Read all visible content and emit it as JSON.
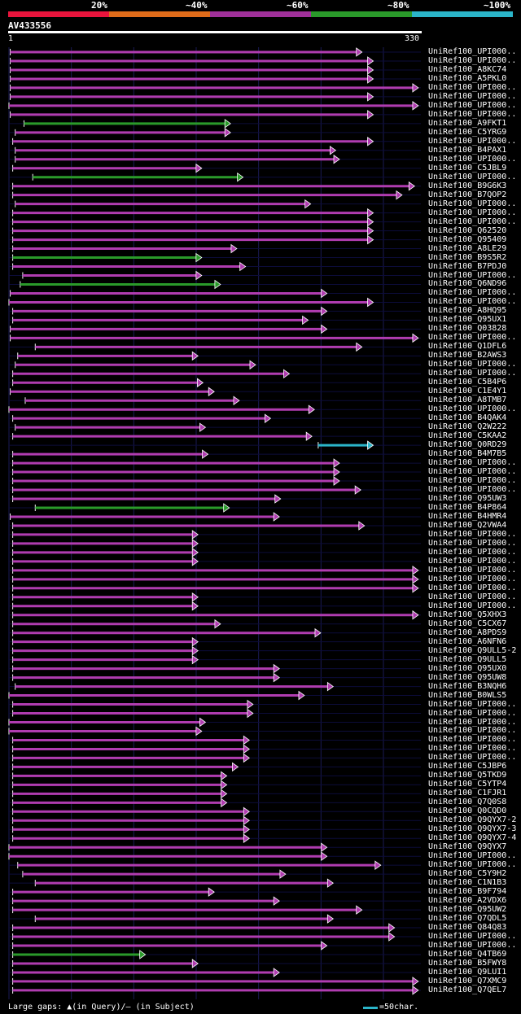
{
  "legend": [
    {
      "label": "20%",
      "color": "#e8143c"
    },
    {
      "label": "~40%",
      "color": "#e06c1a"
    },
    {
      "label": "~60%",
      "color": "#a0309a"
    },
    {
      "label": "~80%",
      "color": "#2a9a2a"
    },
    {
      "label": "~100%",
      "color": "#2bb5c9"
    }
  ],
  "query": {
    "name": "AV433556",
    "start": "1",
    "end": "330",
    "length": 330
  },
  "footer": {
    "gaps_text": "Large gaps: ▲(in Query)/— (in Subject)",
    "scale_text": "=50char."
  },
  "chart_data": {
    "type": "alignment",
    "axis_max": 330,
    "hits": [
      {
        "name": "UniRef100_UPI000..",
        "start": 2,
        "end": 283,
        "c": "m"
      },
      {
        "name": "UniRef100_UPI000..",
        "start": 2,
        "end": 292,
        "c": "m"
      },
      {
        "name": "UniRef100_A8KC74",
        "start": 2,
        "end": 292,
        "c": "m"
      },
      {
        "name": "UniRef100_A5PKL0",
        "start": 2,
        "end": 292,
        "c": "m"
      },
      {
        "name": "UniRef100_UPI000..",
        "start": 2,
        "end": 328,
        "c": "m"
      },
      {
        "name": "UniRef100_UPI000..",
        "start": 2,
        "end": 292,
        "c": "m"
      },
      {
        "name": "UniRef100_UPI000..",
        "start": 1,
        "end": 328,
        "c": "m"
      },
      {
        "name": "UniRef100_UPI000..",
        "start": 2,
        "end": 292,
        "c": "m"
      },
      {
        "name": "UniRef100_A9FKT1",
        "start": 13,
        "end": 178,
        "c": "g"
      },
      {
        "name": "UniRef100_C5YRG9",
        "start": 6,
        "end": 178,
        "c": "m"
      },
      {
        "name": "UniRef100_UPI000..",
        "start": 4,
        "end": 292,
        "c": "m"
      },
      {
        "name": "UniRef100_B4PAX1",
        "start": 6,
        "end": 262,
        "c": "m"
      },
      {
        "name": "UniRef100_UPI000..",
        "start": 6,
        "end": 265,
        "c": "m"
      },
      {
        "name": "UniRef100_C5JBL9",
        "start": 4,
        "end": 155,
        "c": "m"
      },
      {
        "name": "UniRef100_UPI000..",
        "start": 20,
        "end": 188,
        "c": "g"
      },
      {
        "name": "UniRef100_B9G6K3",
        "start": 4,
        "end": 325,
        "c": "m"
      },
      {
        "name": "UniRef100_B7QOP2",
        "start": 4,
        "end": 315,
        "c": "m"
      },
      {
        "name": "UniRef100_UPI000..",
        "start": 6,
        "end": 242,
        "c": "m"
      },
      {
        "name": "UniRef100_UPI000..",
        "start": 4,
        "end": 292,
        "c": "m"
      },
      {
        "name": "UniRef100_UPI000..",
        "start": 4,
        "end": 292,
        "c": "m"
      },
      {
        "name": "UniRef100_Q62520",
        "start": 4,
        "end": 292,
        "c": "m"
      },
      {
        "name": "UniRef100_Q95409",
        "start": 4,
        "end": 292,
        "c": "m"
      },
      {
        "name": "UniRef100_A8LE29",
        "start": 4,
        "end": 183,
        "c": "m"
      },
      {
        "name": "UniRef100_B9S5R2",
        "start": 4,
        "end": 155,
        "c": "g"
      },
      {
        "name": "UniRef100_B7PDJ0",
        "start": 4,
        "end": 190,
        "c": "m"
      },
      {
        "name": "UniRef100_UPI000..",
        "start": 12,
        "end": 155,
        "c": "m"
      },
      {
        "name": "UniRef100_Q6ND96",
        "start": 10,
        "end": 170,
        "c": "g"
      },
      {
        "name": "UniRef100_UPI000..",
        "start": 2,
        "end": 255,
        "c": "m"
      },
      {
        "name": "UniRef100_UPI000..",
        "start": 1,
        "end": 292,
        "c": "m"
      },
      {
        "name": "UniRef100_A8HQ95",
        "start": 4,
        "end": 255,
        "c": "m"
      },
      {
        "name": "UniRef100_Q95UX1",
        "start": 4,
        "end": 240,
        "c": "m"
      },
      {
        "name": "UniRef100_Q03828",
        "start": 2,
        "end": 255,
        "c": "m"
      },
      {
        "name": "UniRef100_UPI000..",
        "start": 2,
        "end": 328,
        "c": "m"
      },
      {
        "name": "UniRef100_Q1DFL6",
        "start": 22,
        "end": 283,
        "c": "m"
      },
      {
        "name": "UniRef100_B2AWS3",
        "start": 8,
        "end": 152,
        "c": "m"
      },
      {
        "name": "UniRef100_UPI000..",
        "start": 6,
        "end": 198,
        "c": "m"
      },
      {
        "name": "UniRef100_UPI000..",
        "start": 4,
        "end": 225,
        "c": "m"
      },
      {
        "name": "UniRef100_C5B4P6",
        "start": 4,
        "end": 156,
        "c": "m"
      },
      {
        "name": "UniRef100_C1E4Y1",
        "start": 2,
        "end": 165,
        "c": "m"
      },
      {
        "name": "UniRef100_A8TMB7",
        "start": 14,
        "end": 185,
        "c": "m"
      },
      {
        "name": "UniRef100_UPI000..",
        "start": 1,
        "end": 245,
        "c": "m"
      },
      {
        "name": "UniRef100_B4QAK4",
        "start": 4,
        "end": 210,
        "c": "m"
      },
      {
        "name": "UniRef100_Q2W222",
        "start": 6,
        "end": 158,
        "c": "m"
      },
      {
        "name": "UniRef100_C5KAA2",
        "start": 4,
        "end": 243,
        "c": "m"
      },
      {
        "name": "UniRef100_Q0RD29",
        "start": 248,
        "end": 292,
        "c": "c"
      },
      {
        "name": "UniRef100_B4M7B5",
        "start": 4,
        "end": 160,
        "c": "m"
      },
      {
        "name": "UniRef100_UPI000..",
        "start": 4,
        "end": 265,
        "c": "m"
      },
      {
        "name": "UniRef100_UPI000..",
        "start": 4,
        "end": 265,
        "c": "m"
      },
      {
        "name": "UniRef100_UPI000..",
        "start": 4,
        "end": 265,
        "c": "m"
      },
      {
        "name": "UniRef100_UPI000..",
        "start": 4,
        "end": 282,
        "c": "m"
      },
      {
        "name": "UniRef100_Q95UW3",
        "start": 4,
        "end": 218,
        "c": "m"
      },
      {
        "name": "UniRef100_B4P864",
        "start": 22,
        "end": 177,
        "c": "g"
      },
      {
        "name": "UniRef100_B4HMR4",
        "start": 2,
        "end": 217,
        "c": "m"
      },
      {
        "name": "UniRef100_Q2VWA4",
        "start": 4,
        "end": 285,
        "c": "m"
      },
      {
        "name": "UniRef100_UPI000..",
        "start": 4,
        "end": 152,
        "c": "m"
      },
      {
        "name": "UniRef100_UPI000..",
        "start": 4,
        "end": 152,
        "c": "m"
      },
      {
        "name": "UniRef100_UPI000..",
        "start": 4,
        "end": 152,
        "c": "m"
      },
      {
        "name": "UniRef100_UPI000..",
        "start": 4,
        "end": 152,
        "c": "m"
      },
      {
        "name": "UniRef100_UPI000..",
        "start": 4,
        "end": 328,
        "c": "m"
      },
      {
        "name": "UniRef100_UPI000..",
        "start": 4,
        "end": 328,
        "c": "m"
      },
      {
        "name": "UniRef100_UPI000..",
        "start": 4,
        "end": 328,
        "c": "m"
      },
      {
        "name": "UniRef100_UPI000..",
        "start": 4,
        "end": 152,
        "c": "m"
      },
      {
        "name": "UniRef100_UPI000..",
        "start": 4,
        "end": 152,
        "c": "m"
      },
      {
        "name": "UniRef100_Q5XHX3",
        "start": 4,
        "end": 328,
        "c": "m"
      },
      {
        "name": "UniRef100_C5CX67",
        "start": 4,
        "end": 170,
        "c": "m"
      },
      {
        "name": "UniRef100_A8PDS9",
        "start": 4,
        "end": 250,
        "c": "m"
      },
      {
        "name": "UniRef100_A6NFN6",
        "start": 4,
        "end": 152,
        "c": "m"
      },
      {
        "name": "UniRef100_Q9ULL5-2",
        "start": 4,
        "end": 152,
        "c": "m"
      },
      {
        "name": "UniRef100_Q9ULL5",
        "start": 4,
        "end": 152,
        "c": "m"
      },
      {
        "name": "UniRef100_Q95UX0",
        "start": 4,
        "end": 217,
        "c": "m"
      },
      {
        "name": "UniRef100_Q95UW8",
        "start": 4,
        "end": 217,
        "c": "m"
      },
      {
        "name": "UniRef100_B3NQH6",
        "start": 6,
        "end": 260,
        "c": "m"
      },
      {
        "name": "UniRef100_B0WLS5",
        "start": 1,
        "end": 237,
        "c": "m"
      },
      {
        "name": "UniRef100_UPI000..",
        "start": 4,
        "end": 196,
        "c": "m"
      },
      {
        "name": "UniRef100_UPI000..",
        "start": 4,
        "end": 196,
        "c": "m"
      },
      {
        "name": "UniRef100_UPI000..",
        "start": 1,
        "end": 158,
        "c": "m"
      },
      {
        "name": "UniRef100_UPI000..",
        "start": 1,
        "end": 155,
        "c": "m"
      },
      {
        "name": "UniRef100_UPI000..",
        "start": 4,
        "end": 193,
        "c": "m"
      },
      {
        "name": "UniRef100_UPI000..",
        "start": 4,
        "end": 193,
        "c": "m"
      },
      {
        "name": "UniRef100_UPI000..",
        "start": 4,
        "end": 193,
        "c": "m"
      },
      {
        "name": "UniRef100_C5JBP6",
        "start": 4,
        "end": 184,
        "c": "m"
      },
      {
        "name": "UniRef100_Q5TKD9",
        "start": 4,
        "end": 175,
        "c": "m"
      },
      {
        "name": "UniRef100_C5YTP4",
        "start": 4,
        "end": 175,
        "c": "m"
      },
      {
        "name": "UniRef100_C1FJR1",
        "start": 4,
        "end": 175,
        "c": "m"
      },
      {
        "name": "UniRef100_Q7Q0S8",
        "start": 4,
        "end": 175,
        "c": "m"
      },
      {
        "name": "UniRef100_Q0CQD0",
        "start": 4,
        "end": 193,
        "c": "m"
      },
      {
        "name": "UniRef100_Q9QYX7-2",
        "start": 4,
        "end": 193,
        "c": "m"
      },
      {
        "name": "UniRef100_Q9QYX7-3",
        "start": 4,
        "end": 193,
        "c": "m"
      },
      {
        "name": "UniRef100_Q9QYX7-4",
        "start": 4,
        "end": 193,
        "c": "m"
      },
      {
        "name": "UniRef100_Q9QYX7",
        "start": 1,
        "end": 255,
        "c": "m"
      },
      {
        "name": "UniRef100_UPI000..",
        "start": 1,
        "end": 255,
        "c": "m"
      },
      {
        "name": "UniRef100_UPI000..",
        "start": 8,
        "end": 298,
        "c": "m"
      },
      {
        "name": "UniRef100_C5Y9H2",
        "start": 12,
        "end": 222,
        "c": "m"
      },
      {
        "name": "UniRef100_C1N1B3",
        "start": 22,
        "end": 260,
        "c": "m"
      },
      {
        "name": "UniRef100_B9F794",
        "start": 4,
        "end": 165,
        "c": "m"
      },
      {
        "name": "UniRef100_A2VDX6",
        "start": 4,
        "end": 217,
        "c": "m"
      },
      {
        "name": "UniRef100_Q95UW2",
        "start": 4,
        "end": 283,
        "c": "m"
      },
      {
        "name": "UniRef100_Q7QDL5",
        "start": 22,
        "end": 260,
        "c": "m"
      },
      {
        "name": "UniRef100_Q84Q83",
        "start": 4,
        "end": 309,
        "c": "m"
      },
      {
        "name": "UniRef100_UPI000..",
        "start": 4,
        "end": 309,
        "c": "m"
      },
      {
        "name": "UniRef100_UPI000..",
        "start": 4,
        "end": 255,
        "c": "m"
      },
      {
        "name": "UniRef100_Q4TB69",
        "start": 4,
        "end": 110,
        "c": "g"
      },
      {
        "name": "UniRef100_B5FWY8",
        "start": 4,
        "end": 152,
        "c": "m"
      },
      {
        "name": "UniRef100_Q9LUI1",
        "start": 4,
        "end": 217,
        "c": "m"
      },
      {
        "name": "UniRef100_Q7XMC9",
        "start": 4,
        "end": 328,
        "c": "m"
      },
      {
        "name": "UniRef100_Q7QEL7",
        "start": 4,
        "end": 328,
        "c": "m"
      }
    ]
  }
}
